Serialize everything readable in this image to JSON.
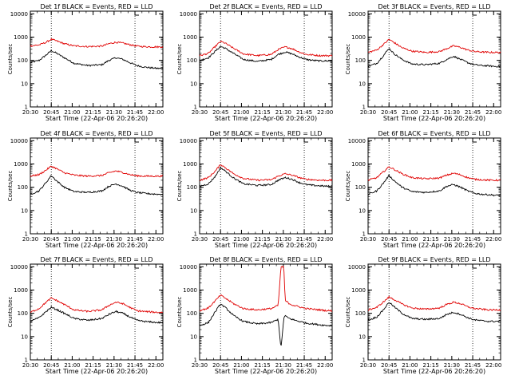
{
  "figure": {
    "xlabel": "Start Time (22-Apr-06 20:26:20)",
    "ylabel": "Counts/sec",
    "x_ticks": [
      "20:30",
      "20:45",
      "21:00",
      "21:15",
      "21:30",
      "21:45",
      "22:00"
    ],
    "y_ticks": [
      "1",
      "10",
      "100",
      "1000",
      "10000"
    ],
    "colors": {
      "events": "#000000",
      "lld": "#e00000"
    }
  },
  "chart_data": [
    {
      "type": "line",
      "title": "Det 1f BLACK = Events, RED = LLD",
      "x_range_minutes": [
        3.67,
        98.67
      ],
      "ylim": [
        1,
        13000
      ],
      "y_scale": "log",
      "vlines_minutes": [
        18.67,
        78.67
      ],
      "series": [
        {
          "name": "Events",
          "color": "#000000",
          "x": [
            3.67,
            10,
            15,
            18.67,
            22,
            28,
            35,
            45,
            55,
            60,
            65,
            70,
            75,
            80,
            85,
            90,
            95,
            98.67
          ],
          "values": [
            80,
            100,
            170,
            260,
            210,
            130,
            75,
            60,
            65,
            100,
            130,
            110,
            80,
            60,
            52,
            48,
            45,
            45
          ]
        },
        {
          "name": "LLD",
          "color": "#e00000",
          "x": [
            3.67,
            10,
            15,
            18.67,
            22,
            28,
            35,
            45,
            55,
            60,
            65,
            70,
            75,
            80,
            85,
            90,
            95,
            98.67
          ],
          "values": [
            420,
            460,
            600,
            800,
            700,
            520,
            420,
            390,
            410,
            520,
            600,
            550,
            470,
            410,
            390,
            380,
            380,
            380
          ]
        }
      ]
    },
    {
      "type": "line",
      "title": "Det 2f BLACK = Events, RED = LLD",
      "x_range_minutes": [
        3.67,
        98.67
      ],
      "ylim": [
        1,
        13000
      ],
      "y_scale": "log",
      "vlines_minutes": [
        18.67,
        78.67
      ],
      "series": [
        {
          "name": "Events",
          "color": "#000000",
          "x": [
            3.67,
            10,
            15,
            18.67,
            22,
            28,
            35,
            45,
            55,
            60,
            65,
            70,
            75,
            80,
            85,
            90,
            95,
            98.67
          ],
          "values": [
            100,
            130,
            250,
            400,
            330,
            200,
            110,
            90,
            110,
            180,
            230,
            190,
            140,
            110,
            100,
            95,
            95,
            95
          ]
        },
        {
          "name": "LLD",
          "color": "#e00000",
          "x": [
            3.67,
            10,
            15,
            18.67,
            22,
            28,
            35,
            45,
            55,
            60,
            65,
            70,
            75,
            80,
            85,
            90,
            95,
            98.67
          ],
          "values": [
            160,
            200,
            400,
            650,
            550,
            330,
            190,
            160,
            180,
            290,
            380,
            320,
            230,
            180,
            170,
            160,
            160,
            160
          ]
        }
      ]
    },
    {
      "type": "line",
      "title": "Det 3f BLACK = Events, RED = LLD",
      "x_range_minutes": [
        3.67,
        98.67
      ],
      "ylim": [
        1,
        13000
      ],
      "y_scale": "log",
      "vlines_minutes": [
        18.67,
        78.67
      ],
      "series": [
        {
          "name": "Events",
          "color": "#000000",
          "x": [
            3.67,
            10,
            15,
            18.67,
            22,
            28,
            35,
            45,
            55,
            60,
            65,
            70,
            75,
            80,
            85,
            90,
            95,
            98.67
          ],
          "values": [
            55,
            75,
            170,
            330,
            200,
            110,
            70,
            65,
            75,
            110,
            150,
            110,
            80,
            65,
            60,
            58,
            55,
            55
          ]
        },
        {
          "name": "LLD",
          "color": "#e00000",
          "x": [
            3.67,
            10,
            15,
            18.67,
            22,
            28,
            35,
            45,
            55,
            60,
            65,
            70,
            75,
            80,
            85,
            90,
            95,
            98.67
          ],
          "values": [
            220,
            280,
            500,
            800,
            600,
            350,
            250,
            220,
            240,
            320,
            420,
            360,
            280,
            240,
            230,
            220,
            220,
            220
          ]
        }
      ]
    },
    {
      "type": "line",
      "title": "Det 4f BLACK = Events, RED = LLD",
      "x_range_minutes": [
        3.67,
        98.67
      ],
      "ylim": [
        1,
        13000
      ],
      "y_scale": "log",
      "vlines_minutes": [
        18.67,
        78.67
      ],
      "series": [
        {
          "name": "Events",
          "color": "#000000",
          "x": [
            3.67,
            10,
            15,
            18.67,
            22,
            28,
            35,
            45,
            55,
            60,
            65,
            70,
            75,
            80,
            85,
            90,
            95,
            98.67
          ],
          "values": [
            50,
            70,
            160,
            320,
            200,
            100,
            65,
            60,
            70,
            110,
            140,
            110,
            75,
            60,
            55,
            52,
            50,
            50
          ]
        },
        {
          "name": "LLD",
          "color": "#e00000",
          "x": [
            3.67,
            10,
            15,
            18.67,
            22,
            28,
            35,
            45,
            55,
            60,
            65,
            70,
            75,
            80,
            85,
            90,
            95,
            98.67
          ],
          "values": [
            300,
            350,
            550,
            800,
            650,
            420,
            330,
            300,
            320,
            420,
            500,
            430,
            350,
            310,
            300,
            300,
            300,
            300
          ]
        }
      ]
    },
    {
      "type": "line",
      "title": "Det 5f BLACK = Events, RED = LLD",
      "x_range_minutes": [
        3.67,
        98.67
      ],
      "ylim": [
        1,
        13000
      ],
      "y_scale": "log",
      "vlines_minutes": [
        18.67,
        78.67
      ],
      "series": [
        {
          "name": "Events",
          "color": "#000000",
          "x": [
            3.67,
            10,
            15,
            18.67,
            22,
            28,
            35,
            45,
            55,
            60,
            65,
            70,
            75,
            80,
            85,
            90,
            95,
            98.67
          ],
          "values": [
            110,
            140,
            300,
            700,
            500,
            250,
            140,
            120,
            130,
            200,
            260,
            220,
            160,
            130,
            120,
            115,
            110,
            110
          ]
        },
        {
          "name": "LLD",
          "color": "#e00000",
          "x": [
            3.67,
            10,
            15,
            18.67,
            22,
            28,
            35,
            45,
            55,
            60,
            65,
            70,
            75,
            80,
            85,
            90,
            95,
            98.67
          ],
          "values": [
            200,
            260,
            500,
            950,
            700,
            380,
            240,
            200,
            210,
            300,
            380,
            330,
            260,
            220,
            210,
            200,
            200,
            200
          ]
        }
      ]
    },
    {
      "type": "line",
      "title": "Det 6f BLACK = Events, RED = LLD",
      "x_range_minutes": [
        3.67,
        98.67
      ],
      "ylim": [
        1,
        13000
      ],
      "y_scale": "log",
      "vlines_minutes": [
        18.67,
        78.67
      ],
      "series": [
        {
          "name": "Events",
          "color": "#000000",
          "x": [
            3.67,
            10,
            15,
            18.67,
            22,
            28,
            35,
            45,
            55,
            60,
            65,
            70,
            75,
            80,
            85,
            90,
            95,
            98.67
          ],
          "values": [
            50,
            70,
            160,
            320,
            200,
            100,
            65,
            60,
            70,
            110,
            130,
            100,
            70,
            55,
            50,
            48,
            45,
            45
          ]
        },
        {
          "name": "LLD",
          "color": "#e00000",
          "x": [
            3.67,
            10,
            15,
            18.67,
            22,
            28,
            35,
            45,
            55,
            60,
            65,
            70,
            75,
            80,
            85,
            90,
            95,
            98.67
          ],
          "values": [
            200,
            260,
            480,
            750,
            600,
            380,
            260,
            230,
            250,
            330,
            400,
            340,
            260,
            220,
            210,
            200,
            200,
            200
          ]
        }
      ]
    },
    {
      "type": "line",
      "title": "Det 7f BLACK = Events, RED = LLD",
      "x_range_minutes": [
        3.67,
        98.67
      ],
      "ylim": [
        1,
        13000
      ],
      "y_scale": "log",
      "vlines_minutes": [
        18.67,
        78.67
      ],
      "series": [
        {
          "name": "Events",
          "color": "#000000",
          "x": [
            3.67,
            10,
            15,
            18.67,
            22,
            28,
            35,
            45,
            55,
            60,
            65,
            70,
            75,
            80,
            85,
            90,
            95,
            98.67
          ],
          "values": [
            45,
            65,
            120,
            180,
            150,
            100,
            60,
            50,
            60,
            90,
            120,
            100,
            70,
            50,
            45,
            42,
            40,
            40
          ]
        },
        {
          "name": "LLD",
          "color": "#e00000",
          "x": [
            3.67,
            10,
            15,
            18.67,
            22,
            28,
            35,
            45,
            55,
            60,
            65,
            70,
            75,
            80,
            85,
            90,
            95,
            98.67
          ],
          "values": [
            110,
            160,
            300,
            450,
            370,
            240,
            140,
            120,
            140,
            220,
            300,
            260,
            180,
            130,
            120,
            115,
            110,
            110
          ]
        }
      ]
    },
    {
      "type": "line",
      "title": "Det 8f BLACK = Events, RED = LLD",
      "x_range_minutes": [
        3.67,
        98.67
      ],
      "ylim": [
        1,
        13000
      ],
      "y_scale": "log",
      "vlines_minutes": [
        18.67,
        78.67
      ],
      "series": [
        {
          "name": "Events",
          "color": "#000000",
          "x": [
            3.67,
            10,
            15,
            18.67,
            22,
            28,
            35,
            45,
            55,
            60,
            62,
            64,
            65,
            66,
            68,
            70,
            75,
            80,
            85,
            90,
            95,
            98.67
          ],
          "values": [
            30,
            40,
            120,
            250,
            180,
            80,
            45,
            35,
            40,
            55,
            3,
            60,
            80,
            70,
            60,
            55,
            45,
            38,
            35,
            32,
            30,
            30
          ]
        },
        {
          "name": "LLD",
          "color": "#e00000",
          "x": [
            3.67,
            10,
            15,
            18.67,
            22,
            28,
            35,
            45,
            55,
            60,
            62,
            64,
            65,
            66,
            68,
            70,
            75,
            80,
            85,
            90,
            95,
            98.67
          ],
          "values": [
            130,
            170,
            350,
            600,
            450,
            260,
            160,
            140,
            160,
            220,
            10000,
            10000,
            350,
            320,
            260,
            230,
            190,
            160,
            150,
            140,
            130,
            130
          ]
        }
      ]
    },
    {
      "type": "line",
      "title": "Det 9f BLACK = Events, RED = LLD",
      "x_range_minutes": [
        3.67,
        98.67
      ],
      "ylim": [
        1,
        13000
      ],
      "y_scale": "log",
      "vlines_minutes": [
        18.67,
        78.67
      ],
      "series": [
        {
          "name": "Events",
          "color": "#000000",
          "x": [
            3.67,
            10,
            15,
            18.67,
            22,
            28,
            35,
            45,
            55,
            60,
            65,
            70,
            75,
            80,
            85,
            90,
            95,
            98.67
          ],
          "values": [
            50,
            70,
            150,
            300,
            200,
            100,
            60,
            55,
            60,
            90,
            110,
            90,
            65,
            52,
            48,
            45,
            45,
            45
          ]
        },
        {
          "name": "LLD",
          "color": "#e00000",
          "x": [
            3.67,
            10,
            15,
            18.67,
            22,
            28,
            35,
            45,
            55,
            60,
            65,
            70,
            75,
            80,
            85,
            90,
            95,
            98.67
          ],
          "values": [
            140,
            180,
            320,
            500,
            400,
            250,
            170,
            150,
            170,
            240,
            300,
            260,
            190,
            160,
            150,
            140,
            140,
            140
          ]
        }
      ]
    }
  ]
}
